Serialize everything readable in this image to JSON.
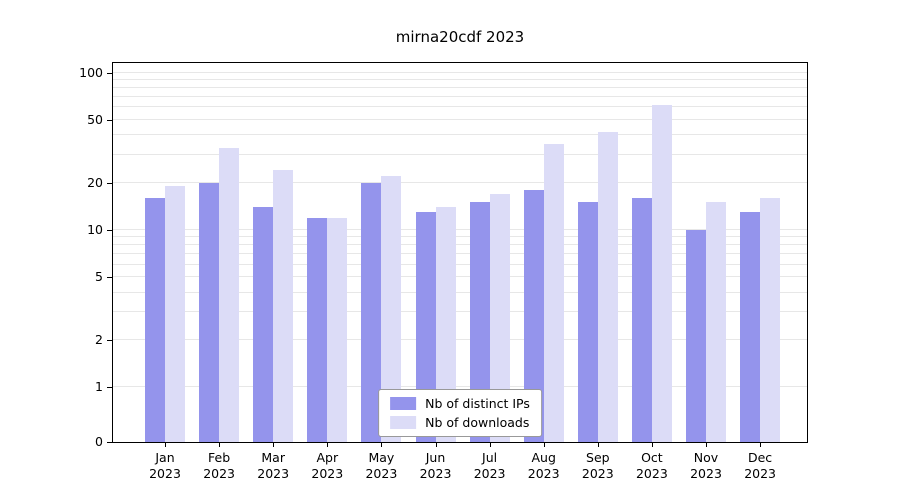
{
  "chart_data": {
    "type": "bar",
    "title": "mirna20cdf 2023",
    "categories": [
      "Jan",
      "Feb",
      "Mar",
      "Apr",
      "May",
      "Jun",
      "Jul",
      "Aug",
      "Sep",
      "Oct",
      "Nov",
      "Dec"
    ],
    "category_year": "2023",
    "series": [
      {
        "name": "Nb of distinct IPs",
        "color": "#9494ec",
        "values": [
          16,
          20,
          14,
          12,
          20,
          13,
          15,
          18,
          15,
          16,
          10,
          13
        ]
      },
      {
        "name": "Nb of downloads",
        "color": "#dcdcf7",
        "values": [
          19,
          33,
          24,
          12,
          22,
          14,
          17,
          35,
          42,
          62,
          15,
          16
        ]
      }
    ],
    "y_axis": {
      "tick_labels": [
        100,
        50,
        20,
        10,
        5,
        2,
        1,
        0
      ],
      "scale": "log",
      "log_min": 0.45,
      "log_max": 115
    },
    "grid": {
      "on": true,
      "color": "#e7e7e7",
      "minor_ticks": true
    },
    "legend": {
      "position": "bottom-center"
    }
  }
}
